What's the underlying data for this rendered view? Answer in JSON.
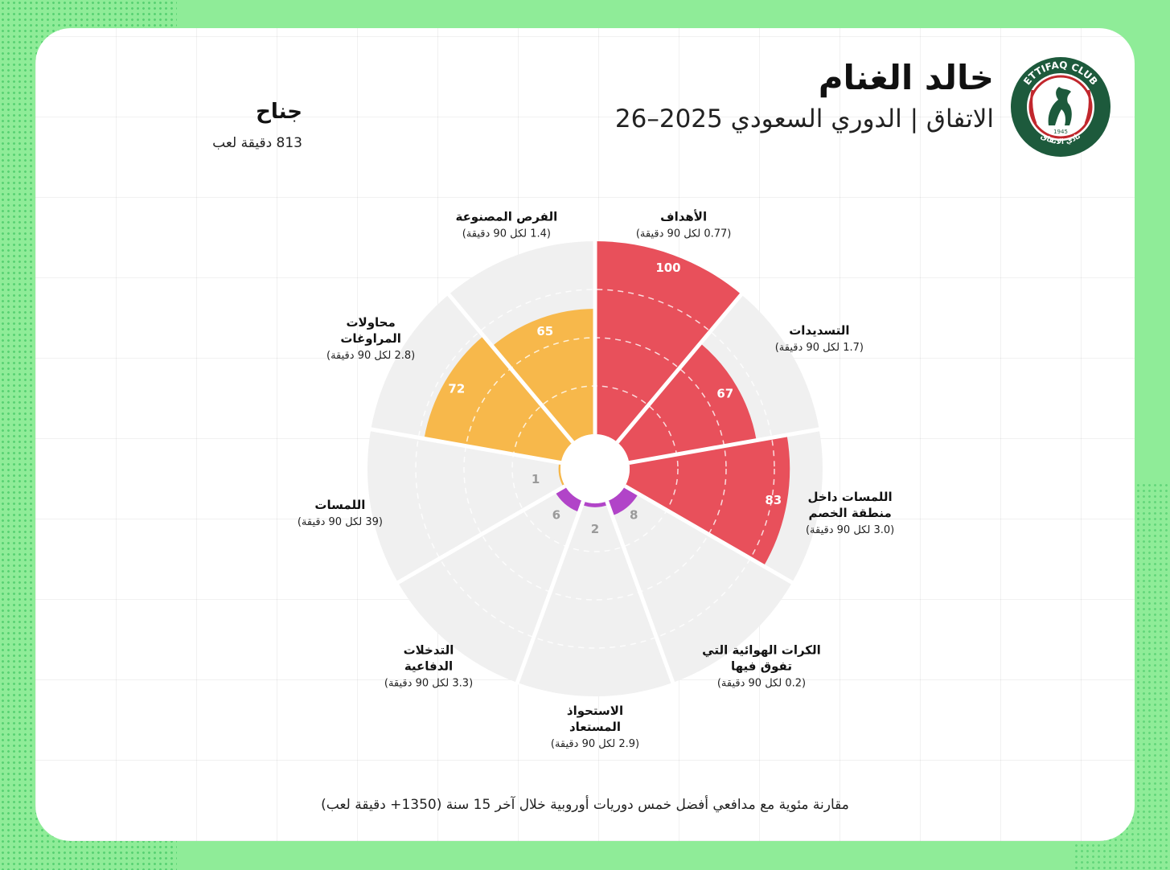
{
  "header": {
    "player_name": "خالد الغنام",
    "subtitle": "الاتفاق | الدوري السعودي 2025–26",
    "position": "جناح",
    "minutes": "813  دقيقة لعب",
    "logo_text_top": "ETTIFAQ CLUB",
    "logo_text_bottom": "نادي الاتفاق",
    "logo_year": "1945"
  },
  "footnote": "مقارنة مئوية مع مدافعي أفضل خمس دوريات أوروبية خلال آخر 15 سنة (1350+ دقيقة لعب)",
  "colors": {
    "attack": "#e8505b",
    "creation": "#f7b84b",
    "defense": "#b144c8",
    "track": "#f0f0f0",
    "logo_green": "#1d5a3c",
    "logo_red": "#c1272d"
  },
  "chart_data": {
    "type": "polar-bar",
    "title": "خالد الغنام",
    "max": 100,
    "rings": [
      25,
      50,
      75,
      100
    ],
    "slices": [
      {
        "name": "الأهداف",
        "per90": "(0.77  لكل 90 دقيقة)",
        "percentile": 100,
        "group": "attack"
      },
      {
        "name": "التسديدات",
        "per90": "(1.7  لكل 90 دقيقة)",
        "percentile": 67,
        "group": "attack"
      },
      {
        "name": "اللمسات داخل منطقة الخصم",
        "per90": "(3.0 لكل 90 دقيقة)",
        "percentile": 83,
        "group": "attack"
      },
      {
        "name": "الكرات الهوائية التي تفوق فيها",
        "per90": "(0.2 لكل 90 دقيقة)",
        "percentile": 8,
        "group": "defense"
      },
      {
        "name": "الاستحواذ المستعاد",
        "per90": "(2.9 لكل 90 دقيقة)",
        "percentile": 2,
        "group": "defense"
      },
      {
        "name": "التدخلات الدفاعية",
        "per90": "(3.3 لكل 90 دقيقة)",
        "percentile": 6,
        "group": "defense"
      },
      {
        "name": "اللمسات",
        "per90": "(39 لكل 90 دقيقة)",
        "percentile": 1,
        "group": "creation"
      },
      {
        "name": "محاولات المراوغات",
        "per90": "(2.8 لكل 90 دقيقة)",
        "percentile": 72,
        "group": "creation"
      },
      {
        "name": "الفرص المصنوعة",
        "per90": "(1.4  لكل 90 دقيقة)",
        "percentile": 65,
        "group": "creation"
      }
    ]
  }
}
